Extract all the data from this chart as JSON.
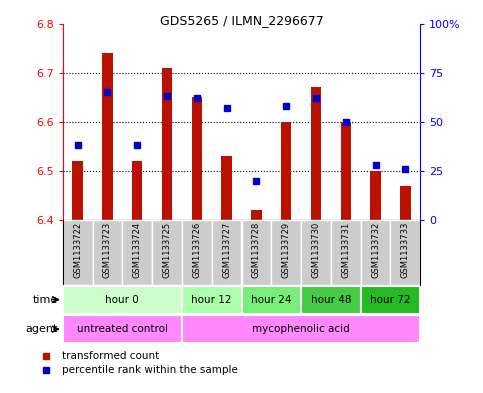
{
  "title": "GDS5265 / ILMN_2296677",
  "samples": [
    "GSM1133722",
    "GSM1133723",
    "GSM1133724",
    "GSM1133725",
    "GSM1133726",
    "GSM1133727",
    "GSM1133728",
    "GSM1133729",
    "GSM1133730",
    "GSM1133731",
    "GSM1133732",
    "GSM1133733"
  ],
  "red_values": [
    6.52,
    6.74,
    6.52,
    6.71,
    6.65,
    6.53,
    6.42,
    6.6,
    6.67,
    6.6,
    6.5,
    6.47
  ],
  "blue_values": [
    38,
    65,
    38,
    63,
    62,
    57,
    20,
    58,
    62,
    50,
    28,
    26
  ],
  "ylim_left": [
    6.4,
    6.8
  ],
  "ylim_right": [
    0,
    100
  ],
  "yticks_left": [
    6.4,
    6.5,
    6.6,
    6.7,
    6.8
  ],
  "yticks_right": [
    0,
    25,
    50,
    75,
    100
  ],
  "ytick_labels_right": [
    "0",
    "25",
    "50",
    "75",
    "100%"
  ],
  "bar_bottom": 6.4,
  "time_groups": [
    {
      "label": "hour 0",
      "start": 0,
      "end": 3,
      "color": "#ccffcc"
    },
    {
      "label": "hour 12",
      "start": 4,
      "end": 5,
      "color": "#aaffaa"
    },
    {
      "label": "hour 24",
      "start": 6,
      "end": 7,
      "color": "#77ee77"
    },
    {
      "label": "hour 48",
      "start": 8,
      "end": 9,
      "color": "#44cc44"
    },
    {
      "label": "hour 72",
      "start": 10,
      "end": 11,
      "color": "#22bb22"
    }
  ],
  "agent_groups": [
    {
      "label": "untreated control",
      "start": 0,
      "end": 3,
      "color": "#ff88ff"
    },
    {
      "label": "mycophenolic acid",
      "start": 4,
      "end": 11,
      "color": "#ff88ff"
    }
  ],
  "legend_red": "transformed count",
  "legend_blue": "percentile rank within the sample",
  "red_color": "#bb1100",
  "blue_color": "#0000cc",
  "sample_bg": "#cccccc",
  "sample_label_fontsize": 6,
  "bar_width": 0.35
}
